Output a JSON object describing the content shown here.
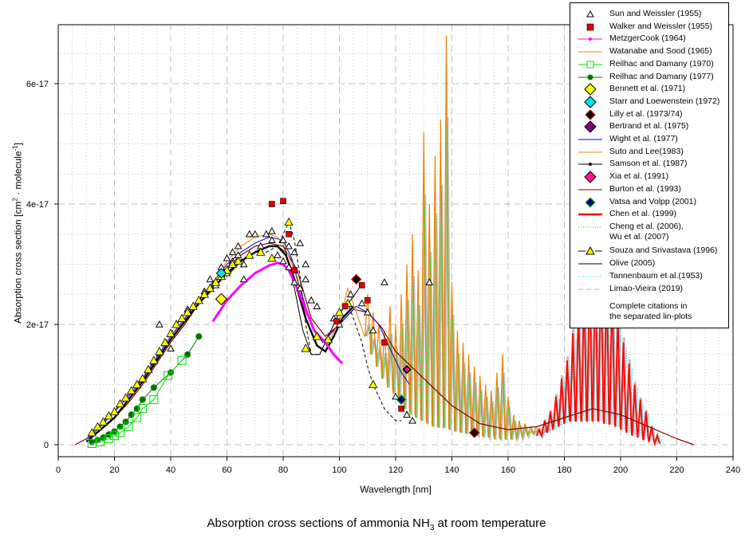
{
  "chart_data": {
    "type": "line",
    "title": "Absorption cross sections of ammonia NH",
    "title_sub": "3",
    "title_tail": " at room temperature",
    "xlabel": "Wavelength [nm]",
    "ylabel_pre": "Absorption cross section [cm",
    "ylabel_sup1": "2",
    "ylabel_mid": " · molecule",
    "ylabel_sup2": "-1",
    "ylabel_post": "]",
    "xlim": [
      0,
      240
    ],
    "ylim_1e17": [
      -0.2,
      7.0
    ],
    "x_ticks": [
      "0",
      "20",
      "40",
      "60",
      "80",
      "100",
      "120",
      "140",
      "160",
      "180",
      "200",
      "220",
      "240"
    ],
    "x_tick_values": [
      0,
      20,
      40,
      60,
      80,
      100,
      120,
      140,
      160,
      180,
      200,
      220,
      240
    ],
    "y_ticks": [
      "0",
      "2e-17",
      "4e-17",
      "6e-17"
    ],
    "y_tick_values_1e17": [
      0,
      2,
      4,
      6
    ],
    "grid": true,
    "legend_position": "top-right",
    "y_unit": "1e-17 cm2 molecule-1",
    "legend": [
      {
        "label": "Sun and Weissler (1955)",
        "symbol": "triangle-open",
        "color": "#000000"
      },
      {
        "label": "Walker and Weissler (1955)",
        "symbol": "square",
        "color": "#e00000"
      },
      {
        "label": "MetzgerCook (1964)",
        "symbol": "line-dot",
        "color": "#ff00ff"
      },
      {
        "label": "Watanabe and Sood (1965)",
        "symbol": "line",
        "color": "#f08000"
      },
      {
        "label": "Reilhac and Damany (1970)",
        "symbol": "line-square-open",
        "color": "#00dd00"
      },
      {
        "label": "Reilhac and Damany (1977)",
        "symbol": "line-dot-big",
        "color": "#007700"
      },
      {
        "label": "Bennett et al. (1971)",
        "symbol": "diamond",
        "color": "#ffff00"
      },
      {
        "label": "Starr and Loewenstein (1972)",
        "symbol": "diamond",
        "color": "#00e5ee"
      },
      {
        "label": "Lilly et al. (1973/74)",
        "symbol": "diamond-dark",
        "color": "#000000"
      },
      {
        "label": "Bertrand et al. (1975)",
        "symbol": "diamond",
        "color": "#800080"
      },
      {
        "label": "Wight et al. (1977)",
        "symbol": "line",
        "color": "#0000cc"
      },
      {
        "label": "Suto and Lee(1983)",
        "symbol": "line",
        "color": "#f08000"
      },
      {
        "label": "Samson et al. (1987)",
        "symbol": "line-dot",
        "color": "#000000"
      },
      {
        "label": "Xia et al. (1991)",
        "symbol": "diamond",
        "color": "#ff1493"
      },
      {
        "label": "Burton et al. (1993)",
        "symbol": "line",
        "color": "#800000"
      },
      {
        "label": "Vatsa and Volpp (2001)",
        "symbol": "diamond-navy",
        "color": "#000080"
      },
      {
        "label": "Chen et al. (1999)",
        "symbol": "line-thick",
        "color": "#ff0000"
      },
      {
        "label": "Cheng et al. (2006),\nWu et al. (2007)",
        "symbol": "dotted",
        "color": "#00dd00"
      },
      {
        "label": "Souza and Srivastava (1996)",
        "symbol": "dash-triangle",
        "color": "#ffff00"
      },
      {
        "label": "Olive (2005)",
        "symbol": "line",
        "color": "#000000"
      },
      {
        "label": "Tannenbaum et al.(1953)",
        "symbol": "dotted",
        "color": "#00e5ee"
      },
      {
        "label": "Limao-Vieira (2019)",
        "symbol": "dashed",
        "color": "#c0c0c0"
      }
    ],
    "legend_note": "Complete citations in\nthe separated lin-plots",
    "series": [
      {
        "name": "Burton et al. (1993)",
        "color": "#800000",
        "width": 1.2,
        "x": [
          6,
          10,
          15,
          20,
          25,
          30,
          35,
          40,
          45,
          50,
          55,
          60,
          65,
          70,
          75,
          80,
          85,
          90,
          95,
          100,
          105,
          110,
          115,
          120,
          130,
          140,
          150,
          160,
          170,
          180,
          190,
          200,
          210,
          220,
          226
        ],
        "y": [
          0,
          0.1,
          0.25,
          0.45,
          0.7,
          1.0,
          1.35,
          1.7,
          2.0,
          2.35,
          2.65,
          2.95,
          3.15,
          3.3,
          3.35,
          3.3,
          2.9,
          2.1,
          1.8,
          2.0,
          2.25,
          2.2,
          1.95,
          1.55,
          1.1,
          0.65,
          0.35,
          0.25,
          0.3,
          0.45,
          0.6,
          0.5,
          0.3,
          0.1,
          0
        ]
      },
      {
        "name": "Wight et al. (1977)",
        "color": "#0000cc",
        "width": 1,
        "x": [
          10,
          15,
          20,
          25,
          30,
          35,
          40,
          45,
          50,
          55,
          60,
          65,
          70,
          75,
          80,
          83,
          86,
          90,
          94,
          98,
          102,
          106,
          110,
          114,
          118,
          122,
          125
        ],
        "y": [
          0.1,
          0.3,
          0.55,
          0.8,
          1.1,
          1.45,
          1.8,
          2.1,
          2.4,
          2.7,
          3.0,
          3.2,
          3.35,
          3.45,
          3.4,
          3.1,
          2.6,
          2.0,
          1.7,
          1.9,
          2.1,
          2.3,
          2.2,
          2.0,
          1.6,
          1.2,
          1.0
        ]
      },
      {
        "name": "Watanabe and Sood (1965)",
        "color": "#f08000",
        "width": 1,
        "x": [
          55,
          60,
          65,
          70,
          75,
          78,
          80,
          84,
          88,
          92,
          96,
          100,
          103,
          106,
          109,
          112
        ],
        "y": [
          2.7,
          3.05,
          3.3,
          3.45,
          3.5,
          3.45,
          3.35,
          2.9,
          2.2,
          1.8,
          1.7,
          2.05,
          2.6,
          2.2,
          1.8,
          1.9
        ]
      },
      {
        "name": "Olive (2005)",
        "color": "#000000",
        "width": 1,
        "x": [
          60,
          65,
          70,
          75,
          78,
          81,
          84,
          87,
          90,
          93,
          96,
          100,
          104,
          107
        ],
        "y": [
          2.8,
          3.05,
          3.2,
          3.3,
          3.3,
          3.2,
          2.6,
          1.9,
          1.5,
          1.5,
          1.8,
          2.2,
          2.4,
          2.6
        ]
      },
      {
        "name": "Samson et al. (1987)",
        "color": "#000000",
        "width": 2.4,
        "x": [
          10,
          15,
          20,
          25,
          30,
          35,
          40,
          45,
          50,
          55,
          60,
          65,
          70,
          75,
          78,
          81,
          84,
          88,
          92,
          95,
          98,
          101,
          105
        ],
        "y": [
          0.05,
          0.25,
          0.45,
          0.75,
          1.05,
          1.4,
          1.75,
          2.05,
          2.35,
          2.6,
          2.85,
          3.05,
          3.2,
          3.3,
          3.3,
          3.15,
          2.75,
          2.1,
          1.65,
          1.55,
          1.8,
          2.1,
          2.3
        ]
      },
      {
        "name": "Souza and Srivastava (1996)",
        "color": "#000000",
        "width": 1,
        "dashed": true,
        "x": [
          12,
          14,
          16,
          18,
          20,
          22,
          24,
          26,
          28,
          30,
          32,
          34,
          36,
          38,
          40,
          42,
          44,
          46,
          48,
          50,
          52,
          54,
          56,
          58,
          60,
          62,
          64,
          66,
          70,
          74,
          78,
          80,
          82,
          84,
          86,
          88,
          90,
          93,
          96,
          100,
          103,
          105,
          108,
          110,
          112,
          114,
          116,
          118,
          120,
          122
        ],
        "y": [
          0.2,
          0.3,
          0.38,
          0.48,
          0.55,
          0.68,
          0.78,
          0.9,
          1.0,
          1.1,
          1.25,
          1.4,
          1.55,
          1.7,
          1.85,
          2.0,
          2.1,
          2.2,
          2.3,
          2.4,
          2.5,
          2.6,
          2.7,
          2.8,
          2.9,
          3.0,
          3.05,
          3.1,
          3.2,
          3.2,
          3.3,
          3.5,
          3.7,
          3.4,
          2.8,
          2.0,
          1.5,
          1.5,
          1.8,
          2.2,
          2.35,
          2.1,
          1.7,
          1.3,
          1.0,
          0.8,
          0.6,
          0.5,
          0.4,
          0.4
        ]
      },
      {
        "name": "MetzgerCook (1964)",
        "color": "#ff00ff",
        "width": 3,
        "x": [
          55,
          60,
          65,
          70,
          75,
          78,
          80,
          82,
          85,
          88,
          91,
          95,
          98,
          101
        ],
        "y": [
          2.05,
          2.4,
          2.65,
          2.85,
          2.98,
          3.02,
          3.0,
          2.9,
          2.6,
          2.25,
          1.9,
          1.7,
          1.5,
          1.35
        ]
      },
      {
        "name": "Reilhac and Damany (1977)",
        "color": "#007700",
        "width": 1,
        "marker": "dot",
        "x": [
          12,
          14,
          16,
          18,
          20,
          22,
          24,
          26,
          28,
          30,
          34,
          40,
          46,
          50
        ],
        "y": [
          0.05,
          0.08,
          0.12,
          0.17,
          0.22,
          0.3,
          0.38,
          0.5,
          0.6,
          0.75,
          0.95,
          1.2,
          1.5,
          1.8
        ]
      },
      {
        "name": "Reilhac and Damany (1970)",
        "color": "#00dd00",
        "width": 1,
        "marker": "square-open",
        "x": [
          12,
          15,
          18,
          20,
          22,
          25,
          28,
          30,
          34,
          39,
          44
        ],
        "y": [
          0.02,
          0.05,
          0.1,
          0.15,
          0.2,
          0.3,
          0.45,
          0.6,
          0.75,
          1.15,
          1.4
        ]
      }
    ],
    "points": {
      "sun_weissler": {
        "color": "#000000",
        "x": [
          36,
          38,
          40,
          46,
          52,
          54,
          56,
          58,
          60,
          60,
          62,
          62,
          64,
          64,
          66,
          66,
          68,
          70,
          72,
          74,
          76,
          76,
          78,
          80,
          80,
          82,
          82,
          84,
          84,
          86,
          86,
          88,
          88,
          90,
          92,
          98,
          100,
          104,
          108,
          110,
          112,
          116,
          120,
          124,
          126,
          132
        ],
        "y": [
          2.0,
          1.7,
          1.6,
          2.25,
          2.55,
          2.75,
          2.65,
          2.95,
          2.85,
          3.1,
          3.2,
          3.05,
          3.3,
          3.15,
          3.0,
          2.75,
          3.5,
          3.5,
          3.3,
          3.5,
          3.4,
          3.55,
          3.15,
          3.05,
          3.4,
          2.95,
          3.3,
          3.2,
          2.7,
          3.35,
          2.6,
          2.75,
          3.0,
          2.4,
          2.3,
          2.1,
          2.0,
          2.5,
          2.35,
          2.2,
          1.9,
          2.7,
          0.8,
          0.5,
          0.4,
          2.7
        ]
      },
      "walker_weissler": {
        "color": "#e00000",
        "x": [
          76,
          80,
          82,
          84,
          99,
          102,
          108,
          110,
          116,
          122
        ],
        "y": [
          4.0,
          4.05,
          3.5,
          2.9,
          2.05,
          2.3,
          2.65,
          2.4,
          1.7,
          0.6
        ]
      },
      "bennett": {
        "color": "#ffff00",
        "x": [
          58
        ],
        "y": [
          2.42
        ]
      },
      "starr": {
        "color": "#00e5ee",
        "x": [
          58
        ],
        "y": [
          2.85
        ]
      },
      "lilly": {
        "color": "#000000",
        "x": [
          106,
          148
        ],
        "y": [
          2.75,
          0.2
        ]
      },
      "bertrand": {
        "color": "#800080",
        "x": [
          124
        ],
        "y": [
          1.25
        ]
      },
      "xia": {
        "color": "#ff1493",
        "x": [
          124
        ],
        "y": [
          1.25
        ]
      },
      "vatsa": {
        "color": "#000080",
        "x": [
          122
        ],
        "y": [
          0.75
        ]
      },
      "souza_markers": {
        "color": "#ffff00",
        "x": [
          12,
          14,
          16,
          18,
          20,
          22,
          24,
          26,
          28,
          30,
          32,
          34,
          36,
          38,
          40,
          42,
          44,
          46,
          48,
          50,
          52,
          54,
          56,
          58,
          60,
          62,
          64,
          68,
          72,
          76,
          82,
          88,
          92,
          96,
          100,
          103,
          112
        ],
        "y": [
          0.2,
          0.3,
          0.38,
          0.48,
          0.55,
          0.68,
          0.78,
          0.9,
          1.0,
          1.1,
          1.25,
          1.4,
          1.55,
          1.7,
          1.85,
          2.0,
          2.1,
          2.2,
          2.3,
          2.4,
          2.5,
          2.6,
          2.7,
          2.8,
          2.9,
          3.0,
          3.05,
          3.15,
          3.2,
          3.1,
          3.7,
          1.6,
          1.8,
          1.75,
          2.2,
          2.35,
          1.0
        ]
      }
    },
    "band_region": {
      "description_free": "",
      "x_start": 108,
      "x_end": 176,
      "peaks_x": [
        110,
        112,
        114,
        116,
        118,
        120,
        122,
        124,
        126,
        128,
        130,
        132,
        134,
        136,
        138,
        140,
        142,
        144,
        146,
        148,
        150,
        152,
        154,
        156,
        158,
        160,
        162,
        164,
        166,
        168,
        170,
        172,
        174
      ],
      "peaks_y": [
        2.5,
        2.2,
        2.0,
        1.9,
        2.3,
        2.0,
        2.5,
        3.0,
        3.5,
        2.9,
        5.2,
        4.0,
        4.8,
        5.4,
        6.8,
        2.7,
        1.9,
        1.7,
        1.5,
        1.3,
        1.15,
        1.0,
        0.9,
        1.2,
        1.5,
        0.8,
        0.5,
        0.4,
        0.35,
        0.3,
        0.3,
        0.25,
        0.3
      ],
      "base_y": [
        1.8,
        1.5,
        1.3,
        1.1,
        0.95,
        0.85,
        0.7,
        0.6,
        0.5,
        0.45,
        0.4,
        0.35,
        0.3,
        0.3,
        0.28,
        0.25,
        0.22,
        0.2,
        0.18,
        0.16,
        0.15,
        0.14,
        0.12,
        0.11,
        0.1,
        0.1,
        0.1,
        0.12,
        0.15,
        0.18,
        0.2,
        0.22,
        0.25
      ]
    },
    "a_band": {
      "peaks_x": [
        171,
        173,
        175,
        177,
        179,
        181,
        183,
        185,
        187,
        189,
        191,
        193,
        195,
        197,
        199,
        201,
        203,
        205,
        207,
        209,
        211,
        213
      ],
      "peaks_y": [
        0.25,
        0.4,
        0.55,
        0.8,
        1.1,
        1.4,
        1.85,
        2.3,
        2.65,
        2.95,
        3.05,
        3.1,
        2.8,
        2.65,
        2.2,
        1.7,
        1.35,
        1.0,
        0.75,
        0.55,
        0.3,
        0.15
      ],
      "base_y": [
        0.15,
        0.2,
        0.25,
        0.3,
        0.35,
        0.4,
        0.4,
        0.4,
        0.4,
        0.4,
        0.4,
        0.4,
        0.35,
        0.35,
        0.3,
        0.25,
        0.2,
        0.15,
        0.12,
        0.08,
        0.05,
        0.02
      ]
    }
  }
}
